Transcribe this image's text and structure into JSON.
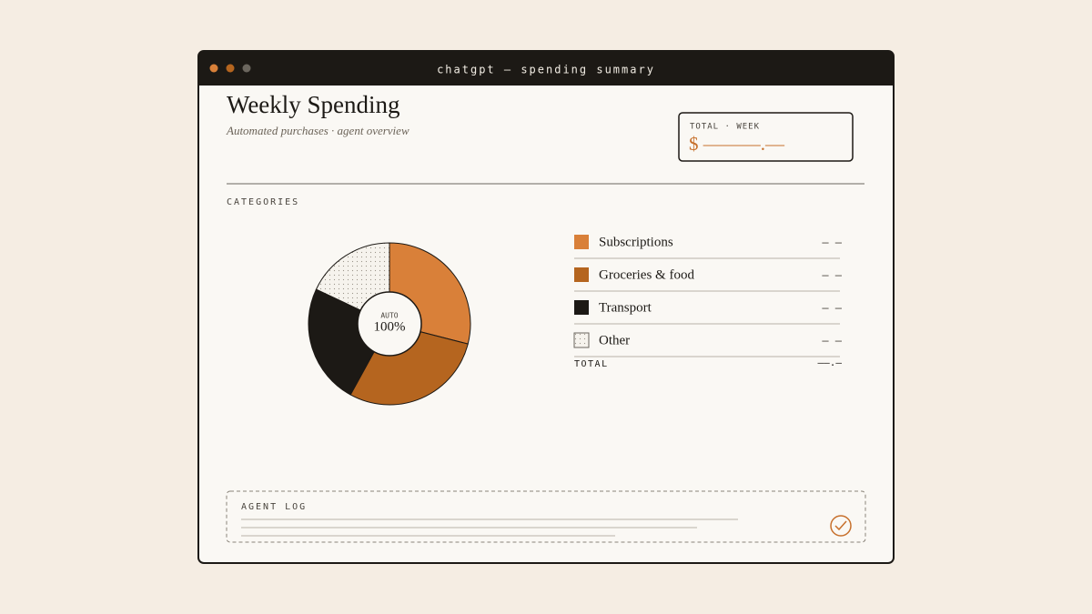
{
  "window": {
    "title": "chatgpt — spending summary"
  },
  "header": {
    "title": "Weekly Spending",
    "subtitle": "Automated purchases · agent overview"
  },
  "total_box": {
    "label": "TOTAL · WEEK",
    "amount": "$ ———.—"
  },
  "section_label": "CATEGORIES",
  "chart_data": {
    "type": "pie",
    "categories": [
      "Subscriptions",
      "Groceries & food",
      "Transport",
      "Other"
    ],
    "values": [
      29,
      29,
      24,
      18
    ],
    "colors": [
      "#d98039",
      "#b5651f",
      "#1c1915",
      "#f6f3ed"
    ],
    "patterns": [
      null,
      null,
      null,
      "dots"
    ],
    "center_label": "AUTO",
    "center_value": "100%"
  },
  "legend": {
    "amounts": [
      "– –",
      "– –",
      "– –",
      "– –"
    ],
    "total_label": "TOTAL",
    "total_value": "——.—"
  },
  "agent_log": {
    "title": "AGENT LOG"
  }
}
